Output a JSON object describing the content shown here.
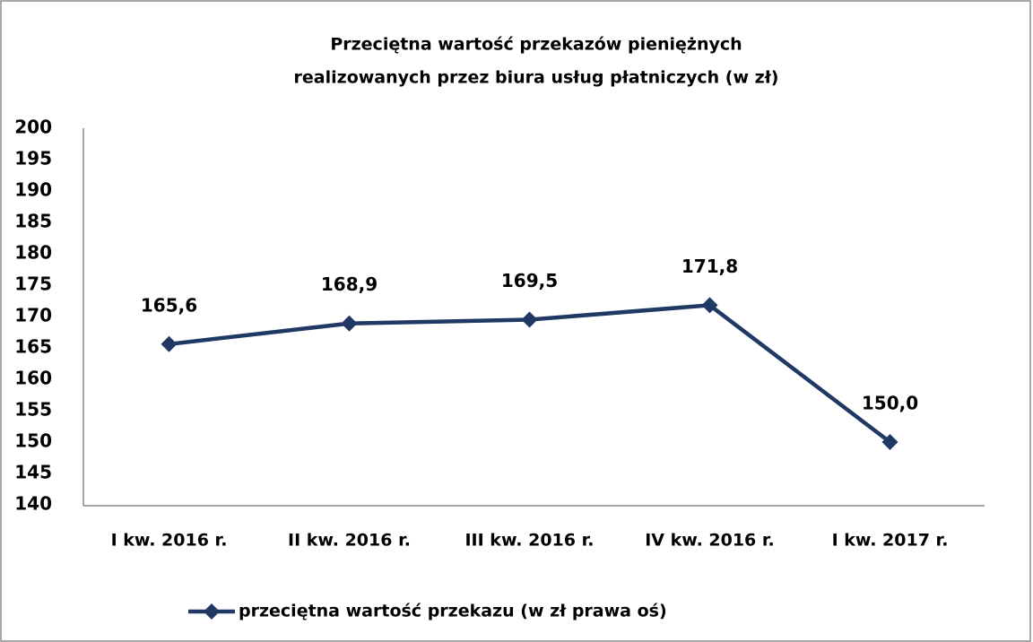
{
  "chart_data": {
    "type": "line",
    "title": [
      "Przeciętna wartość przekazów pieniężnych",
      "realizowanych przez biura usług płatniczych (w zł)"
    ],
    "categories": [
      "I kw. 2016 r.",
      "II kw. 2016 r.",
      "III kw. 2016 r.",
      "IV kw. 2016 r.",
      "I kw. 2017 r."
    ],
    "series": [
      {
        "name": "przeciętna wartość przekazu (w zł prawa oś)",
        "color": "#203864",
        "values": [
          165.6,
          168.9,
          169.5,
          171.8,
          150.0
        ],
        "value_labels": [
          "165,6",
          "168,9",
          "169,5",
          "171,8",
          "150,0"
        ]
      }
    ],
    "ylim": [
      140,
      200
    ],
    "yticks": [
      140,
      145,
      150,
      155,
      160,
      165,
      170,
      175,
      180,
      185,
      190,
      195,
      200
    ],
    "legend": "bottom"
  }
}
